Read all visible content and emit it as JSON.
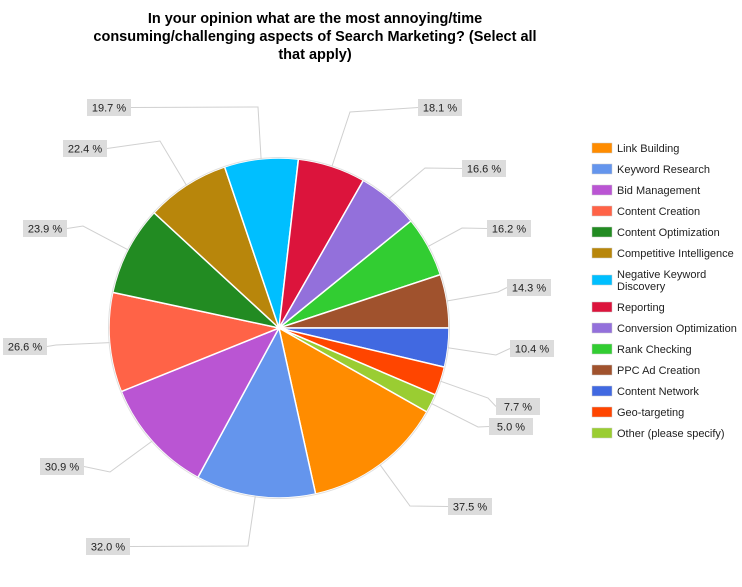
{
  "chart_data": {
    "type": "pie",
    "title": "In your opinion what are the most annoying/time consuming/challenging aspects of Search Marketing? (Select all that apply)",
    "legend_position": "right",
    "unit": "%",
    "slices": [
      {
        "label": "Link Building",
        "value": 37.5,
        "display": "37.5 %",
        "color": "#FF8C00"
      },
      {
        "label": "Keyword Research",
        "value": 32.0,
        "display": "32.0 %",
        "color": "#6495ED"
      },
      {
        "label": "Bid Management",
        "value": 30.9,
        "display": "30.9 %",
        "color": "#BA55D3"
      },
      {
        "label": "Content Creation",
        "value": 26.6,
        "display": "26.6 %",
        "color": "#FF6347"
      },
      {
        "label": "Content Optimization",
        "value": 23.9,
        "display": "23.9 %",
        "color": "#228B22"
      },
      {
        "label": "Competitive Intelligence",
        "value": 22.4,
        "display": "22.4 %",
        "color": "#B8860B"
      },
      {
        "label": "Negative Keyword Discovery",
        "value": 19.7,
        "display": "19.7 %",
        "color": "#00BFFF"
      },
      {
        "label": "Reporting",
        "value": 18.1,
        "display": "18.1 %",
        "color": "#DC143C"
      },
      {
        "label": "Conversion Optimization",
        "value": 16.6,
        "display": "16.6 %",
        "color": "#9370DB"
      },
      {
        "label": "Rank Checking",
        "value": 16.2,
        "display": "16.2 %",
        "color": "#32CD32"
      },
      {
        "label": "PPC Ad Creation",
        "value": 14.3,
        "display": "14.3 %",
        "color": "#A0522D"
      },
      {
        "label": "Content Network",
        "value": 10.4,
        "display": "10.4 %",
        "color": "#4169E1"
      },
      {
        "label": "Geo-targeting",
        "value": 7.7,
        "display": "7.7 %",
        "color": "#FF4500"
      },
      {
        "label": "Other (please specify)",
        "value": 5.0,
        "display": "5.0 %",
        "color": "#9ACD32"
      }
    ]
  }
}
